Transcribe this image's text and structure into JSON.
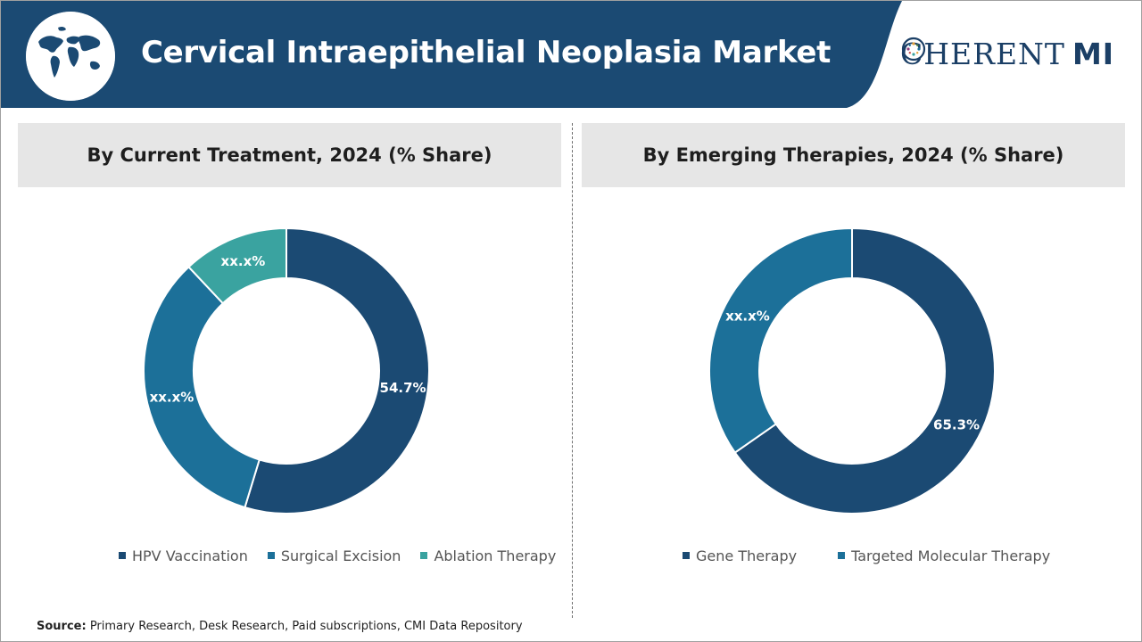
{
  "header": {
    "title": "Cervical Intraepithelial Neoplasia Market",
    "logo_c": "C",
    "logo_rest": "HERENT",
    "logo_mi": "MI",
    "bar_color": "#1b4a73",
    "globe_icon": "world-map-icon"
  },
  "left_panel": {
    "heading": "By Current Treatment, 2024 (% Share)"
  },
  "right_panel": {
    "heading": "By Emerging Therapies, 2024 (% Share)"
  },
  "chart_data": [
    {
      "type": "pie",
      "title": "By Current Treatment, 2024 (% Share)",
      "categories": [
        "HPV Vaccination",
        "Surgical Excision",
        "Ablation Therapy"
      ],
      "values": [
        54.7,
        33.3,
        12.0
      ],
      "labels": [
        "54.7%",
        "xx.x%",
        "xx.x%"
      ],
      "colors": [
        "#1b4a73",
        "#1c7099",
        "#3aa3a0"
      ],
      "donut": true,
      "legend": "bottom"
    },
    {
      "type": "pie",
      "title": "By Emerging Therapies, 2024 (% Share)",
      "categories": [
        "Gene Therapy",
        "Targeted Molecular Therapy"
      ],
      "values": [
        65.3,
        34.7
      ],
      "labels": [
        "65.3%",
        "xx.x%"
      ],
      "colors": [
        "#1b4a73",
        "#1c7099"
      ],
      "donut": true,
      "legend": "bottom"
    }
  ],
  "source": {
    "label": "Source:",
    "text": " Primary Research, Desk Research, Paid subscriptions, CMI Data Repository"
  }
}
